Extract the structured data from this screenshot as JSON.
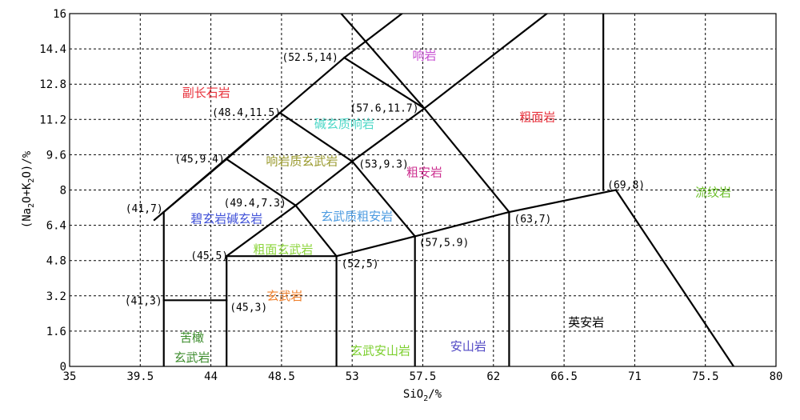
{
  "chart_data": {
    "type": "diagram",
    "xlabel": "SiO2/%",
    "ylabel": "(Na2O+K2O)/%",
    "xlim": [
      35,
      80
    ],
    "ylim": [
      0,
      16
    ],
    "x_ticks": [
      "35",
      "39.5",
      "44",
      "48.5",
      "53",
      "57.5",
      "62",
      "66.5",
      "71",
      "75.5",
      "80"
    ],
    "y_ticks": [
      "0",
      "1.6",
      "3.2",
      "4.8",
      "6.4",
      "8",
      "9.6",
      "11.2",
      "12.8",
      "14.4",
      "16"
    ],
    "boundaries": [
      [
        [
          41,
          0
        ],
        [
          41,
          7
        ]
      ],
      [
        [
          41,
          3
        ],
        [
          45,
          3
        ]
      ],
      [
        [
          41,
          7
        ],
        [
          45,
          9.4
        ]
      ],
      [
        [
          45,
          0
        ],
        [
          45,
          5
        ]
      ],
      [
        [
          45,
          5
        ],
        [
          49.4,
          7.3
        ]
      ],
      [
        [
          45,
          5
        ],
        [
          52,
          5
        ]
      ],
      [
        [
          45,
          9.4
        ],
        [
          48.4,
          11.5
        ]
      ],
      [
        [
          45,
          9.4
        ],
        [
          49.4,
          7.3
        ]
      ],
      [
        [
          48.4,
          11.5
        ],
        [
          52.5,
          14
        ]
      ],
      [
        [
          48.4,
          11.5
        ],
        [
          53,
          9.3
        ]
      ],
      [
        [
          52.5,
          14
        ],
        [
          57.6,
          11.7
        ]
      ],
      [
        [
          52.5,
          14
        ],
        [
          61.5,
          18.9
        ]
      ],
      [
        [
          49.4,
          7.3
        ],
        [
          52,
          5
        ]
      ],
      [
        [
          49.4,
          7.3
        ],
        [
          53,
          9.3
        ]
      ],
      [
        [
          53,
          9.3
        ],
        [
          57.6,
          11.7
        ]
      ],
      [
        [
          53,
          9.3
        ],
        [
          57,
          5.9
        ]
      ],
      [
        [
          52,
          0
        ],
        [
          52,
          5
        ]
      ],
      [
        [
          52,
          5
        ],
        [
          57,
          5.9
        ]
      ],
      [
        [
          57,
          0
        ],
        [
          57,
          5.9
        ]
      ],
      [
        [
          57,
          5.9
        ],
        [
          63,
          7
        ]
      ],
      [
        [
          57.6,
          11.7
        ],
        [
          63,
          7
        ]
      ],
      [
        [
          57.6,
          11.7
        ],
        [
          65.4,
          16
        ]
      ],
      [
        [
          48.4,
          11.5
        ],
        [
          40.4,
          6.64
        ]
      ],
      [
        [
          57.6,
          11.7
        ],
        [
          52.3,
          16
        ]
      ],
      [
        [
          63,
          0
        ],
        [
          63,
          7
        ]
      ],
      [
        [
          63,
          7
        ],
        [
          69.8,
          8
        ]
      ],
      [
        [
          69,
          8
        ],
        [
          69,
          16
        ]
      ],
      [
        [
          69.8,
          8
        ],
        [
          77.3,
          0
        ]
      ]
    ],
    "points": [
      {
        "label": "(52.5,14)",
        "x": 52.5,
        "y": 14
      },
      {
        "label": "(48.4,11.5)",
        "x": 48.4,
        "y": 11.5
      },
      {
        "label": "(57.6,11.7)",
        "x": 57.6,
        "y": 11.7
      },
      {
        "label": "(45,9.4)",
        "x": 45,
        "y": 9.4
      },
      {
        "label": "(53,9.3)",
        "x": 53,
        "y": 9.3
      },
      {
        "label": "(49.4,7.3)",
        "x": 49.4,
        "y": 7.3
      },
      {
        "label": "(41,7)",
        "x": 41,
        "y": 7
      },
      {
        "label": "(69,8)",
        "x": 69,
        "y": 8
      },
      {
        "label": "(63,7)",
        "x": 63,
        "y": 7
      },
      {
        "label": "(57,5.9)",
        "x": 57,
        "y": 5.9
      },
      {
        "label": "(45,5)",
        "x": 45,
        "y": 5
      },
      {
        "label": "(52,5)",
        "x": 52,
        "y": 5
      },
      {
        "label": "(41,3)",
        "x": 41,
        "y": 3
      },
      {
        "label": "(45,3)",
        "x": 45,
        "y": 3
      }
    ],
    "regions": [
      {
        "name": "副长石岩",
        "x": 43.7,
        "y": 12.4,
        "color": "#e8323c"
      },
      {
        "name": "响岩",
        "x": 57.6,
        "y": 14.1,
        "color": "#c64bd1"
      },
      {
        "name": "碱玄质响岩",
        "x": 52.5,
        "y": 11.0,
        "color": "#4fd8c8"
      },
      {
        "name": "粗面岩",
        "x": 64.8,
        "y": 11.3,
        "color": "#e8323c"
      },
      {
        "name": "响岩质玄武岩",
        "x": 49.8,
        "y": 9.3,
        "color": "#9a9a2e"
      },
      {
        "name": "粗安岩",
        "x": 57.6,
        "y": 8.8,
        "color": "#cc2f8f"
      },
      {
        "name": "流纹岩",
        "x": 76.0,
        "y": 7.9,
        "color": "#6bbf2a"
      },
      {
        "name": "碧玄岩碱玄岩",
        "x": 45.0,
        "y": 6.7,
        "color": "#3f50d8"
      },
      {
        "name": "玄武质粗安岩",
        "x": 53.3,
        "y": 6.8,
        "color": "#4c9be0"
      },
      {
        "name": "粗面玄武岩",
        "x": 48.6,
        "y": 5.3,
        "color": "#8bd43a"
      },
      {
        "name": "玄武岩",
        "x": 48.7,
        "y": 3.2,
        "color": "#ef7f2a"
      },
      {
        "name": "英安岩",
        "x": 67.9,
        "y": 2.0,
        "color": "#000000"
      },
      {
        "name": "苦橄",
        "x": 42.8,
        "y": 1.3,
        "color": "#3c8c2c"
      },
      {
        "name": "玄武岩",
        "x": 42.8,
        "y": 0.4,
        "color": "#3c8c2c"
      },
      {
        "name": "玄武安山岩",
        "x": 54.8,
        "y": 0.7,
        "color": "#7ccf2e"
      },
      {
        "name": "安山岩",
        "x": 60.4,
        "y": 0.9,
        "color": "#5148c4"
      }
    ]
  }
}
